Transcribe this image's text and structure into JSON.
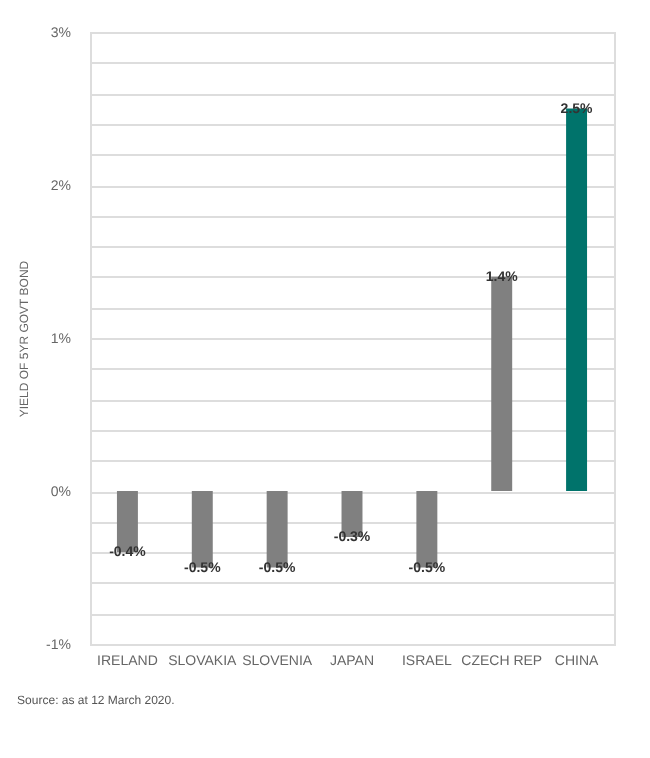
{
  "chart_data": {
    "type": "bar",
    "ylabel": "YIELD OF 5YR GOVT BOND",
    "categories": [
      "IRELAND",
      "SLOVAKIA",
      "SLOVENIA",
      "JAPAN",
      "ISRAEL",
      "CZECH REP",
      "CHINA"
    ],
    "values": [
      -0.4,
      -0.5,
      -0.5,
      -0.3,
      -0.5,
      1.4,
      2.5
    ],
    "colors": [
      "#808080",
      "#808080",
      "#808080",
      "#808080",
      "#808080",
      "#808080",
      "#00736b"
    ],
    "value_labels": [
      "-0.4%",
      "-0.5%",
      "-0.5%",
      "-0.3%",
      "-0.5%",
      "1.4%",
      "2.5%"
    ],
    "ylim": [
      -1,
      3
    ],
    "yticks": [
      {
        "value": -1,
        "label": "-1%"
      },
      {
        "value": -0.8,
        "label": null
      },
      {
        "value": -0.6,
        "label": null
      },
      {
        "value": -0.4,
        "label": null
      },
      {
        "value": -0.2,
        "label": null
      },
      {
        "value": 0,
        "label": "0%"
      },
      {
        "value": 0.2,
        "label": null
      },
      {
        "value": 0.4,
        "label": null
      },
      {
        "value": 0.6,
        "label": null
      },
      {
        "value": 0.8,
        "label": null
      },
      {
        "value": 1,
        "label": "1%"
      },
      {
        "value": 1.2,
        "label": null
      },
      {
        "value": 1.4,
        "label": null
      },
      {
        "value": 1.6,
        "label": null
      },
      {
        "value": 1.8,
        "label": null
      },
      {
        "value": 2,
        "label": "2%"
      },
      {
        "value": 2.2,
        "label": null
      },
      {
        "value": 2.4,
        "label": null
      },
      {
        "value": 2.6,
        "label": null
      },
      {
        "value": 2.8,
        "label": null
      },
      {
        "value": 3,
        "label": "3%"
      }
    ],
    "grid": "y",
    "annotations": [
      "Source: as at 12 March 2020."
    ]
  }
}
